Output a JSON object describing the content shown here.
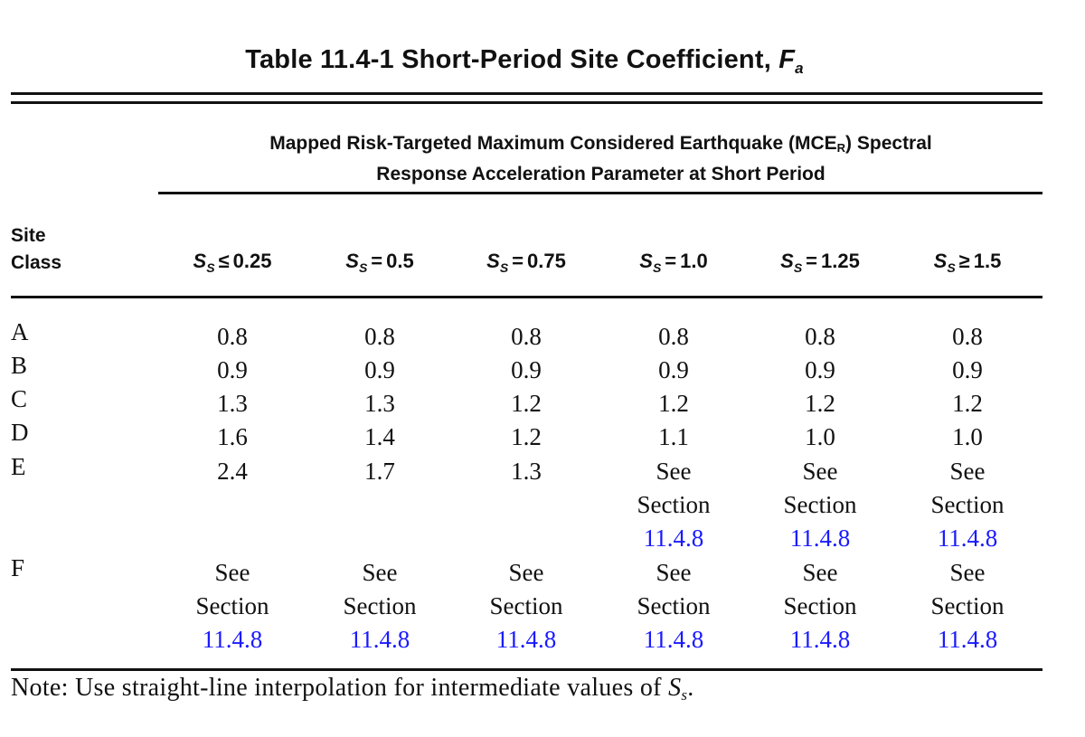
{
  "table": {
    "title_prefix": "Table 11.4-1 Short-Period Site Coefficient, ",
    "title_symbol": "F",
    "title_symbol_sub": "a",
    "header_line1_a": "Mapped Risk-Targeted Maximum Considered Earthquake (MCE",
    "header_line1_sub": "R",
    "header_line1_b": ") Spectral",
    "header_line2": "Response Acceleration Parameter at Short Period",
    "site_label_line1": "Site",
    "site_label_line2": "Class",
    "columns": [
      {
        "symbol": "S",
        "sub": "S",
        "op": "≤",
        "value": "0.25"
      },
      {
        "symbol": "S",
        "sub": "S",
        "op": "=",
        "value": "0.5"
      },
      {
        "symbol": "S",
        "sub": "S",
        "op": "=",
        "value": "0.75"
      },
      {
        "symbol": "S",
        "sub": "S",
        "op": "=",
        "value": "1.0"
      },
      {
        "symbol": "S",
        "sub": "S",
        "op": "=",
        "value": "1.25"
      },
      {
        "symbol": "S",
        "sub": "S",
        "op": "≥",
        "value": "1.5"
      }
    ],
    "see_section": {
      "line1": "See",
      "line2": "Section",
      "link": "11.4.8"
    },
    "rows": [
      {
        "label": "A",
        "values": [
          "0.8",
          "0.8",
          "0.8",
          "0.8",
          "0.8",
          "0.8"
        ]
      },
      {
        "label": "B",
        "values": [
          "0.9",
          "0.9",
          "0.9",
          "0.9",
          "0.9",
          "0.9"
        ]
      },
      {
        "label": "C",
        "values": [
          "1.3",
          "1.3",
          "1.2",
          "1.2",
          "1.2",
          "1.2"
        ]
      },
      {
        "label": "D",
        "values": [
          "1.6",
          "1.4",
          "1.2",
          "1.1",
          "1.0",
          "1.0"
        ]
      },
      {
        "label": "E",
        "values": [
          "2.4",
          "1.7",
          "1.3",
          "See Section 11.4.8",
          "See Section 11.4.8",
          "See Section 11.4.8"
        ]
      },
      {
        "label": "F",
        "values": [
          "See Section 11.4.8",
          "See Section 11.4.8",
          "See Section 11.4.8",
          "See Section 11.4.8",
          "See Section 11.4.8",
          "See Section 11.4.8"
        ]
      }
    ],
    "note_prefix": "Note: Use straight-line interpolation for intermediate values of ",
    "note_symbol": "S",
    "note_symbol_sub": "s",
    "note_suffix": "."
  },
  "colors": {
    "link": "#1a1aff",
    "text": "#111111"
  }
}
